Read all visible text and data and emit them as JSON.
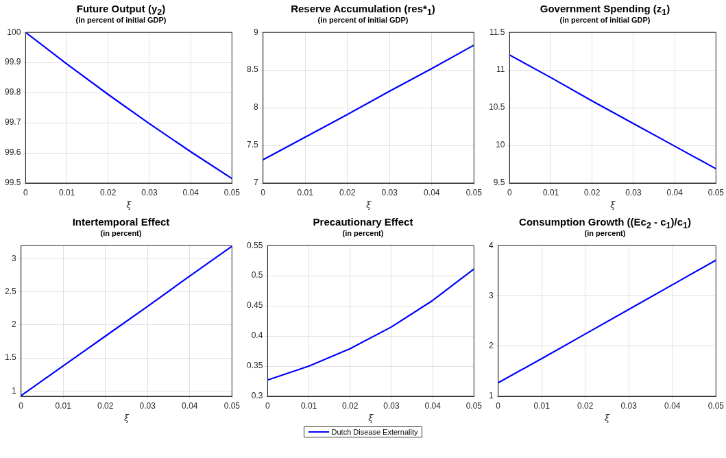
{
  "chart_data": [
    {
      "type": "line",
      "title": "Future Output (y$_{2}$)",
      "subtitle": "(in percent of initial GDP)",
      "xlabel": "ξ",
      "x": [
        0,
        0.01,
        0.02,
        0.03,
        0.04,
        0.05
      ],
      "series": [
        {
          "color": "#0000ff",
          "values": [
            100,
            99.895,
            99.794,
            99.697,
            99.604,
            99.515
          ]
        }
      ],
      "xlim": [
        0,
        0.05
      ],
      "xticks": [
        0,
        0.01,
        0.02,
        0.03,
        0.04,
        0.05
      ],
      "ylim": [
        99.5,
        100
      ],
      "yticks": [
        99.5,
        99.6,
        99.7,
        99.8,
        99.9,
        100
      ],
      "grid": true,
      "marker": "none",
      "line_style": "solid"
    },
    {
      "type": "line",
      "title": "Reserve Accumulation (res*$_{1}$)",
      "subtitle": "(in percent of initial GDP)",
      "xlabel": "ξ",
      "x": [
        0,
        0.01,
        0.02,
        0.03,
        0.04,
        0.05
      ],
      "series": [
        {
          "color": "#0000ff",
          "values": [
            7.31,
            7.61,
            7.91,
            8.22,
            8.52,
            8.83
          ]
        }
      ],
      "xlim": [
        0,
        0.05
      ],
      "xticks": [
        0,
        0.01,
        0.02,
        0.03,
        0.04,
        0.05
      ],
      "ylim": [
        7,
        9
      ],
      "yticks": [
        7,
        7.5,
        8,
        8.5,
        9
      ],
      "grid": true,
      "marker": "none",
      "line_style": "solid"
    },
    {
      "type": "line",
      "title": "Government Spending (z$_{1}$)",
      "subtitle": "(in percent of initial GDP)",
      "xlabel": "ξ",
      "x": [
        0,
        0.01,
        0.02,
        0.03,
        0.04,
        0.05
      ],
      "series": [
        {
          "color": "#0000ff",
          "values": [
            11.2,
            10.9,
            10.59,
            10.29,
            9.99,
            9.69
          ]
        }
      ],
      "xlim": [
        0,
        0.05
      ],
      "xticks": [
        0,
        0.01,
        0.02,
        0.03,
        0.04,
        0.05
      ],
      "ylim": [
        9.5,
        11.5
      ],
      "yticks": [
        9.5,
        10,
        10.5,
        11,
        11.5
      ],
      "grid": true,
      "marker": "none",
      "line_style": "solid"
    },
    {
      "type": "line",
      "title": "Intertemporal Effect",
      "subtitle": "(in percent)",
      "xlabel": "ξ",
      "x": [
        0,
        0.01,
        0.02,
        0.03,
        0.04,
        0.05
      ],
      "series": [
        {
          "color": "#0000ff",
          "values": [
            0.93,
            1.38,
            1.83,
            2.28,
            2.74,
            3.19
          ]
        }
      ],
      "xlim": [
        0,
        0.05
      ],
      "xticks": [
        0,
        0.01,
        0.02,
        0.03,
        0.04,
        0.05
      ],
      "ylim": [
        0.92,
        3.2
      ],
      "yticks": [
        1,
        1.5,
        2,
        2.5,
        3
      ],
      "grid": true,
      "marker": "none",
      "line_style": "solid"
    },
    {
      "type": "line",
      "title": "Precautionary Effect",
      "subtitle": "(in percent)",
      "xlabel": "ξ",
      "x": [
        0,
        0.01,
        0.02,
        0.03,
        0.04,
        0.05
      ],
      "series": [
        {
          "name": "Dutch Disease Externality",
          "color": "#0000ff",
          "values": [
            0.327,
            0.35,
            0.379,
            0.415,
            0.459,
            0.511
          ]
        }
      ],
      "xlim": [
        0,
        0.05
      ],
      "xticks": [
        0,
        0.01,
        0.02,
        0.03,
        0.04,
        0.05
      ],
      "ylim": [
        0.3,
        0.55
      ],
      "yticks": [
        0.3,
        0.35,
        0.4,
        0.45,
        0.5,
        0.55
      ],
      "grid": true,
      "marker": "none",
      "line_style": "solid",
      "legend": "bottom"
    },
    {
      "type": "line",
      "title": "Consumption Growth ((Ec$_{2}$ - c$_{1}$)/c$_{1}$)",
      "subtitle": "(in percent)",
      "xlabel": "ξ",
      "x": [
        0,
        0.01,
        0.02,
        0.03,
        0.04,
        0.05
      ],
      "series": [
        {
          "color": "#0000ff",
          "values": [
            1.27,
            1.75,
            2.24,
            2.73,
            3.22,
            3.71
          ]
        }
      ],
      "xlim": [
        0,
        0.05
      ],
      "xticks": [
        0,
        0.01,
        0.02,
        0.03,
        0.04,
        0.05
      ],
      "ylim": [
        1,
        4
      ],
      "yticks": [
        1,
        2,
        3,
        4
      ],
      "grid": true,
      "marker": "none",
      "line_style": "solid"
    }
  ]
}
